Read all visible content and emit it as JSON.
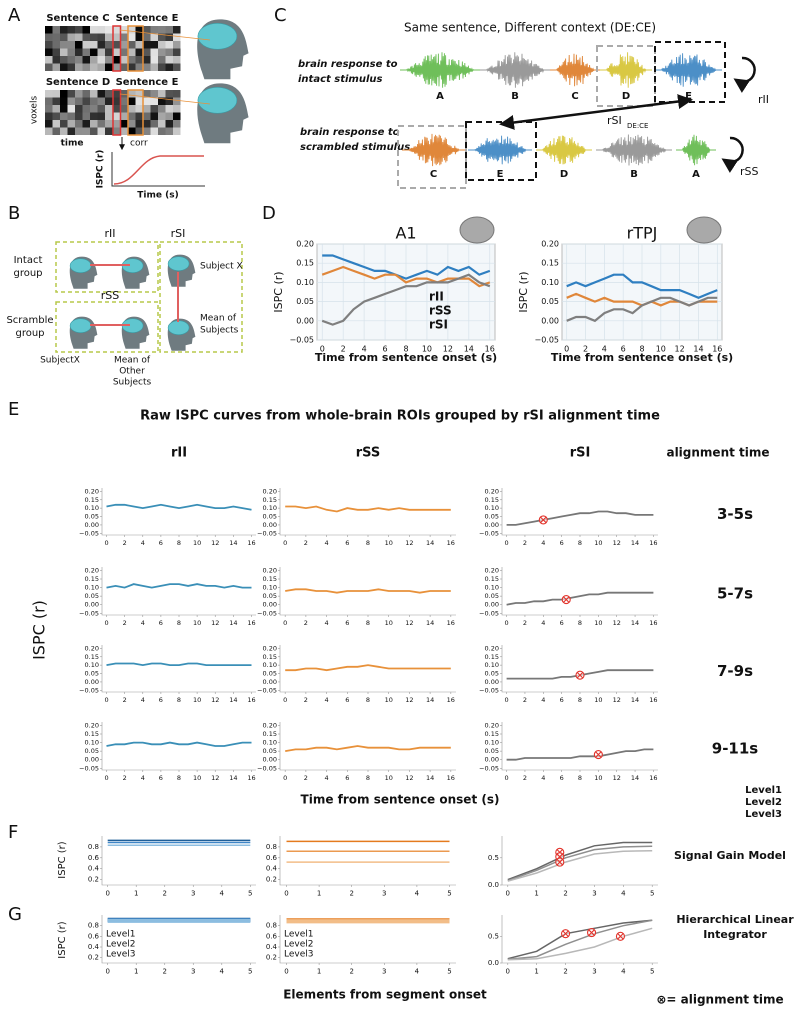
{
  "A": {
    "label": "A",
    "sentences": [
      "Sentence C",
      "Sentence E",
      "Sentence D",
      "Sentence E"
    ],
    "voxels": "voxels",
    "time": "time",
    "corr": "corr",
    "ylabel": "ISPC (r)",
    "xlabel": "Time (s)"
  },
  "B": {
    "label": "B",
    "rII": "rII",
    "rSI": "rSI",
    "rSS": "rSS",
    "intact": [
      "Intact",
      "group"
    ],
    "scramble": [
      "Scramble",
      "group"
    ],
    "subject_x": "Subject X",
    "subjectx": "SubjectX",
    "mean_other": [
      "Mean of",
      "Other",
      "Subjects"
    ],
    "mean": [
      "Mean of",
      "Subjects"
    ]
  },
  "C": {
    "label": "C",
    "title": "Same sentence, Different context (DE:CE)",
    "intact": [
      "brain response to",
      "intact stimulus"
    ],
    "scrambled": [
      "brain response to",
      "scrambled stimulus"
    ],
    "top_letters": [
      "A",
      "B",
      "C",
      "D",
      "E"
    ],
    "bottom_letters": [
      "C",
      "E",
      "D",
      "B",
      "A"
    ],
    "rII": "rII",
    "rSS": "rSS",
    "rSI": "rSI",
    "rSI_sub": "DE:CE"
  },
  "D": {
    "label": "D",
    "charts": [
      {
        "type": "line",
        "title": "A1",
        "xlabel": "Time from sentence onset (s)",
        "ylabel": "ISPC (r)",
        "x": [
          0,
          1,
          2,
          3,
          4,
          5,
          6,
          7,
          8,
          9,
          10,
          11,
          12,
          13,
          14,
          15,
          16
        ],
        "xlim": [
          -0.5,
          16.5
        ],
        "ylim": [
          -0.05,
          0.2
        ],
        "xticks": [
          0,
          2,
          4,
          6,
          8,
          10,
          12,
          14,
          16
        ],
        "yticks": [
          {
            "value": -0.05,
            "label": "−0.05"
          },
          {
            "value": 0,
            "label": "0.00"
          },
          {
            "value": 0.05,
            "label": "0.05"
          },
          {
            "value": 0.1,
            "label": "0.10"
          },
          {
            "value": 0.15,
            "label": "0.15"
          },
          {
            "value": 0.2,
            "label": "0.20"
          }
        ],
        "series": [
          {
            "name": "rII",
            "color": "#2f7fc1",
            "values": [
              0.17,
              0.17,
              0.16,
              0.15,
              0.14,
              0.13,
              0.13,
              0.12,
              0.11,
              0.12,
              0.13,
              0.12,
              0.14,
              0.13,
              0.14,
              0.12,
              0.13
            ]
          },
          {
            "name": "rSS",
            "color": "#e0873a",
            "values": [
              0.12,
              0.13,
              0.14,
              0.13,
              0.12,
              0.11,
              0.12,
              0.12,
              0.1,
              0.11,
              0.11,
              0.1,
              0.11,
              0.11,
              0.11,
              0.09,
              0.1
            ]
          },
          {
            "name": "rSI",
            "color": "#7f7f7f",
            "values": [
              0.0,
              -0.01,
              0.0,
              0.03,
              0.05,
              0.06,
              0.07,
              0.08,
              0.09,
              0.09,
              0.1,
              0.1,
              0.1,
              0.11,
              0.12,
              0.1,
              0.09
            ]
          }
        ]
      },
      {
        "type": "line",
        "title": "rTPJ",
        "xlabel": "Time from sentence onset (s)",
        "ylabel": "ISPC (r)",
        "x": [
          0,
          1,
          2,
          3,
          4,
          5,
          6,
          7,
          8,
          9,
          10,
          11,
          12,
          13,
          14,
          15,
          16
        ],
        "xlim": [
          -0.5,
          16.5
        ],
        "ylim": [
          -0.05,
          0.2
        ],
        "xticks": [
          0,
          2,
          4,
          6,
          8,
          10,
          12,
          14,
          16
        ],
        "yticks": [
          {
            "value": -0.05,
            "label": "−0.05"
          },
          {
            "value": 0,
            "label": "0.00"
          },
          {
            "value": 0.05,
            "label": "0.05"
          },
          {
            "value": 0.1,
            "label": "0.10"
          },
          {
            "value": 0.15,
            "label": "0.15"
          },
          {
            "value": 0.2,
            "label": "0.20"
          }
        ],
        "series": [
          {
            "color": "#2f7fc1",
            "values": [
              0.09,
              0.1,
              0.09,
              0.1,
              0.11,
              0.12,
              0.12,
              0.1,
              0.1,
              0.09,
              0.08,
              0.08,
              0.08,
              0.07,
              0.06,
              0.07,
              0.08
            ]
          },
          {
            "color": "#e0873a",
            "values": [
              0.06,
              0.07,
              0.06,
              0.05,
              0.06,
              0.05,
              0.05,
              0.05,
              0.04,
              0.05,
              0.04,
              0.05,
              0.05,
              0.04,
              0.05,
              0.05,
              0.05
            ]
          },
          {
            "color": "#7f7f7f",
            "values": [
              0.0,
              0.01,
              0.01,
              0.0,
              0.02,
              0.03,
              0.03,
              0.02,
              0.04,
              0.05,
              0.06,
              0.06,
              0.05,
              0.04,
              0.05,
              0.06,
              0.06
            ]
          }
        ]
      }
    ]
  },
  "E": {
    "label": "E",
    "title": "Raw ISPC curves from whole-brain ROIs grouped by rSI alignment time",
    "columns": [
      "rII",
      "rSS",
      "rSI"
    ],
    "alignment_header": "alignment time",
    "rows": [
      "3-5s",
      "5-7s",
      "7-9s",
      "9-11s"
    ],
    "ylabel": "ISPC (r)",
    "xlabel": "Time from sentence onset (s)",
    "legend": [
      {
        "name": "Level1",
        "color": "#5f5f5f"
      },
      {
        "name": "Level2",
        "color": "#8a8a8a"
      },
      {
        "name": "Level3",
        "color": "#b5b5b5"
      }
    ],
    "axes": {
      "x": [
        0,
        1,
        2,
        3,
        4,
        5,
        6,
        7,
        8,
        9,
        10,
        11,
        12,
        13,
        14,
        15,
        16
      ],
      "xlim": [
        -0.5,
        16.5
      ],
      "ylim": [
        -0.06,
        0.22
      ],
      "xticks": [
        0,
        2,
        4,
        6,
        8,
        10,
        12,
        14,
        16
      ],
      "yticks": [
        {
          "value": -0.05,
          "label": "−0.05"
        },
        {
          "value": 0,
          "label": "0.00"
        },
        {
          "value": 0.05,
          "label": "0.05"
        },
        {
          "value": 0.1,
          "label": "0.10"
        },
        {
          "value": 0.15,
          "label": "0.15"
        },
        {
          "value": 0.2,
          "label": "0.20"
        }
      ]
    },
    "plots": [
      [
        [
          {
            "color": "#3a8fb7",
            "values": [
              0.11,
              0.12,
              0.12,
              0.11,
              0.1,
              0.11,
              0.12,
              0.11,
              0.1,
              0.11,
              0.12,
              0.11,
              0.1,
              0.1,
              0.11,
              0.1,
              0.09
            ]
          }
        ],
        [
          {
            "color": "#e8913a",
            "values": [
              0.11,
              0.11,
              0.1,
              0.11,
              0.09,
              0.08,
              0.1,
              0.09,
              0.09,
              0.1,
              0.09,
              0.1,
              0.09,
              0.09,
              0.09,
              0.09,
              0.09
            ]
          }
        ],
        [
          {
            "color": "#777777",
            "values": [
              0.0,
              0.0,
              0.01,
              0.02,
              0.03,
              0.04,
              0.05,
              0.06,
              0.07,
              0.07,
              0.08,
              0.08,
              0.07,
              0.07,
              0.06,
              0.06,
              0.06
            ],
            "marker": {
              "x": 4,
              "y": 0.03
            }
          }
        ]
      ],
      [
        [
          {
            "color": "#3a8fb7",
            "values": [
              0.1,
              0.11,
              0.1,
              0.12,
              0.11,
              0.1,
              0.11,
              0.12,
              0.12,
              0.11,
              0.12,
              0.11,
              0.11,
              0.1,
              0.11,
              0.1,
              0.1
            ]
          }
        ],
        [
          {
            "color": "#e8913a",
            "values": [
              0.08,
              0.09,
              0.09,
              0.08,
              0.08,
              0.07,
              0.08,
              0.08,
              0.08,
              0.09,
              0.08,
              0.08,
              0.08,
              0.07,
              0.08,
              0.08,
              0.08
            ]
          }
        ],
        [
          {
            "color": "#777777",
            "values": [
              0.0,
              0.01,
              0.01,
              0.02,
              0.02,
              0.03,
              0.03,
              0.04,
              0.05,
              0.06,
              0.06,
              0.07,
              0.07,
              0.07,
              0.07,
              0.07,
              0.07
            ],
            "marker": {
              "x": 6.5,
              "y": 0.03
            }
          }
        ]
      ],
      [
        [
          {
            "color": "#3a8fb7",
            "values": [
              0.1,
              0.11,
              0.11,
              0.11,
              0.1,
              0.11,
              0.11,
              0.1,
              0.1,
              0.11,
              0.11,
              0.1,
              0.1,
              0.1,
              0.1,
              0.1,
              0.1
            ]
          }
        ],
        [
          {
            "color": "#e8913a",
            "values": [
              0.07,
              0.07,
              0.08,
              0.08,
              0.07,
              0.08,
              0.09,
              0.09,
              0.1,
              0.09,
              0.08,
              0.08,
              0.08,
              0.08,
              0.08,
              0.08,
              0.08
            ]
          }
        ],
        [
          {
            "color": "#777777",
            "values": [
              0.02,
              0.02,
              0.02,
              0.02,
              0.02,
              0.02,
              0.03,
              0.03,
              0.04,
              0.05,
              0.06,
              0.07,
              0.07,
              0.07,
              0.07,
              0.07,
              0.07
            ],
            "marker": {
              "x": 8,
              "y": 0.04
            }
          }
        ]
      ],
      [
        [
          {
            "color": "#3a8fb7",
            "values": [
              0.08,
              0.09,
              0.09,
              0.1,
              0.1,
              0.09,
              0.09,
              0.1,
              0.09,
              0.09,
              0.1,
              0.09,
              0.08,
              0.08,
              0.09,
              0.1,
              0.1
            ]
          }
        ],
        [
          {
            "color": "#e8913a",
            "values": [
              0.05,
              0.06,
              0.06,
              0.07,
              0.07,
              0.06,
              0.07,
              0.08,
              0.07,
              0.07,
              0.07,
              0.06,
              0.06,
              0.07,
              0.07,
              0.07,
              0.07
            ]
          }
        ],
        [
          {
            "color": "#777777",
            "values": [
              0.0,
              0.0,
              0.01,
              0.01,
              0.01,
              0.01,
              0.01,
              0.01,
              0.02,
              0.02,
              0.02,
              0.03,
              0.04,
              0.05,
              0.05,
              0.06,
              0.06
            ],
            "marker": {
              "x": 10,
              "y": 0.03
            }
          }
        ]
      ]
    ]
  },
  "F": {
    "label": "F",
    "model": "Signal Gain Model",
    "ylabel": "ISPC (r)",
    "axes": [
      {
        "x": [
          0,
          1,
          2,
          3,
          4,
          5
        ],
        "xlim": [
          -0.2,
          5.2
        ],
        "ylim": [
          0.1,
          1.0
        ],
        "xticks": [
          0,
          1,
          2,
          3,
          4,
          5
        ],
        "yticks": [
          0.2,
          0.4,
          0.6,
          0.8
        ]
      },
      {
        "x": [
          0,
          1,
          2,
          3,
          4,
          5
        ],
        "xlim": [
          -0.2,
          5.2
        ],
        "ylim": [
          0.1,
          1.0
        ],
        "xticks": [
          0,
          1,
          2,
          3,
          4,
          5
        ],
        "yticks": [
          0.2,
          0.4,
          0.6,
          0.8
        ]
      },
      {
        "x": [
          0,
          1,
          2,
          3,
          4,
          5
        ],
        "xlim": [
          -0.2,
          5.2
        ],
        "ylim": [
          0,
          0.9
        ],
        "xticks": [
          0,
          1,
          2,
          3,
          4,
          5
        ],
        "yticks": [
          {
            "value": 0,
            "label": "0.0"
          },
          0.5
        ]
      }
    ],
    "plots": [
      [
        {
          "color": "#1f5f99",
          "values": [
            0.92,
            0.92,
            0.92,
            0.92,
            0.92,
            0.92
          ]
        },
        {
          "color": "#3f86c6",
          "values": [
            0.88,
            0.88,
            0.88,
            0.88,
            0.88,
            0.88
          ]
        },
        {
          "color": "#8cbde0",
          "values": [
            0.83,
            0.83,
            0.83,
            0.83,
            0.83,
            0.83
          ]
        }
      ],
      [
        {
          "color": "#e47a1e",
          "values": [
            0.9,
            0.9,
            0.9,
            0.9,
            0.9,
            0.9
          ]
        },
        {
          "color": "#eb9a50",
          "values": [
            0.72,
            0.72,
            0.72,
            0.72,
            0.72,
            0.72
          ]
        },
        {
          "color": "#f2bd88",
          "values": [
            0.52,
            0.52,
            0.52,
            0.52,
            0.52,
            0.52
          ]
        }
      ],
      [
        {
          "color": "#666666",
          "values": [
            0.1,
            0.3,
            0.55,
            0.72,
            0.78,
            0.78
          ],
          "marker": {
            "x": 1.8,
            "y": 0.6
          }
        },
        {
          "color": "#8f8f8f",
          "values": [
            0.08,
            0.27,
            0.5,
            0.65,
            0.7,
            0.71
          ],
          "marker": {
            "x": 1.8,
            "y": 0.52
          }
        },
        {
          "color": "#b8b8b8",
          "values": [
            0.07,
            0.22,
            0.42,
            0.57,
            0.62,
            0.63
          ],
          "marker": {
            "x": 1.8,
            "y": 0.42
          }
        }
      ]
    ]
  },
  "G": {
    "label": "G",
    "model": [
      "Hierarchical Linear",
      "Integrator"
    ],
    "xlabel": "Elements from segment onset",
    "note": "⊗= alignment time",
    "ylabel": "ISPC (r)",
    "plots": [
      [
        {
          "name": "Level1",
          "color": "#1f5f99",
          "values": [
            0.91,
            0.91,
            0.91,
            0.91,
            0.91,
            0.91
          ]
        },
        {
          "name": "Level2",
          "color": "#3f86c6",
          "values": [
            0.9,
            0.9,
            0.9,
            0.9,
            0.9,
            0.9
          ]
        },
        {
          "name": "Level3",
          "color": "#8cbde0",
          "values": [
            0.89,
            0.89,
            0.89,
            0.89,
            0.89,
            0.89
          ]
        }
      ],
      [
        {
          "name": "Level1",
          "color": "#e47a1e",
          "values": [
            0.9,
            0.9,
            0.9,
            0.9,
            0.9,
            0.9
          ]
        },
        {
          "name": "Level2",
          "color": "#eb9a50",
          "values": [
            0.89,
            0.89,
            0.89,
            0.89,
            0.89,
            0.89
          ]
        },
        {
          "name": "Level3",
          "color": "#f2bd88",
          "values": [
            0.88,
            0.88,
            0.88,
            0.88,
            0.88,
            0.88
          ]
        }
      ],
      [
        {
          "color": "#666666",
          "values": [
            0.08,
            0.22,
            0.55,
            0.65,
            0.75,
            0.8
          ],
          "marker": {
            "x": 2,
            "y": 0.55
          }
        },
        {
          "color": "#8f8f8f",
          "values": [
            0.07,
            0.12,
            0.35,
            0.55,
            0.7,
            0.8
          ],
          "marker": {
            "x": 2.9,
            "y": 0.57
          }
        },
        {
          "color": "#b8b8b8",
          "values": [
            0.06,
            0.08,
            0.18,
            0.3,
            0.5,
            0.65
          ],
          "marker": {
            "x": 3.9,
            "y": 0.5
          }
        }
      ]
    ]
  }
}
